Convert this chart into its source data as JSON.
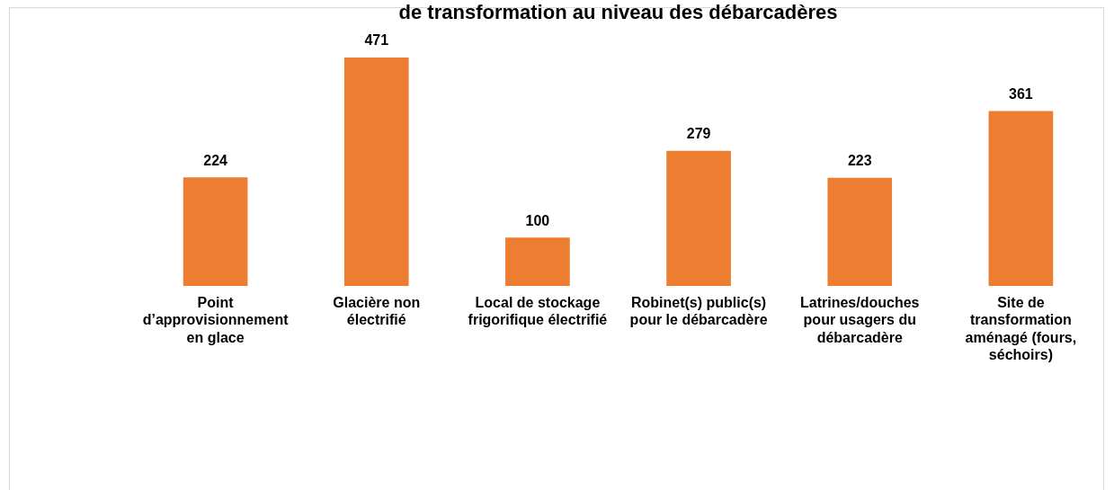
{
  "chart_data": {
    "type": "bar",
    "title": "de transformation au niveau des débarcadères",
    "categories": [
      "Point d’approvisionnement en glace",
      "Glacière non électrifié",
      "Local de stockage frigorifique électrifié",
      "Robinet(s) public(s) pour le débarcadère",
      "Latrines/douches pour usagers du débarcadère",
      "Site de transformation aménagé (fours, séchoirs)"
    ],
    "values": [
      224,
      471,
      100,
      279,
      223,
      361
    ],
    "color": "#ed7d31",
    "data_labels": true,
    "grid": false,
    "legend": false
  }
}
